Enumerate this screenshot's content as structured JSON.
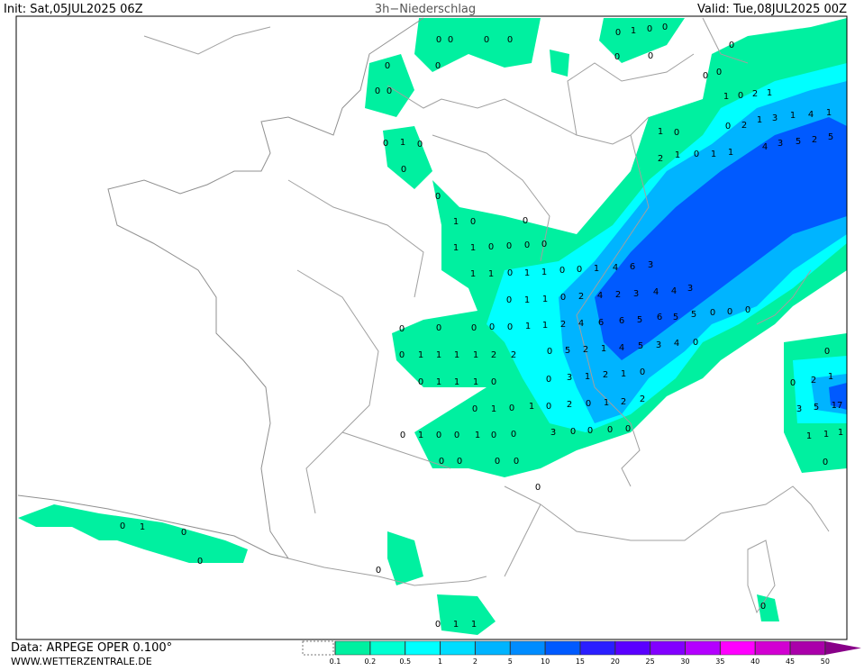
{
  "header": {
    "init": "Init: Sat,05JUL2025 06Z",
    "title": "3h−Niederschlag",
    "valid": "Valid: Tue,08JUL2025 00Z"
  },
  "footer": {
    "data": "Data: ARPEGE OPER 0.100°",
    "site": "WWW.WETTERZENTRALE.DE"
  },
  "legend": {
    "levels": [
      0.1,
      0.2,
      0.5,
      1,
      2,
      5,
      10,
      15,
      20,
      25,
      30,
      35,
      40,
      45,
      50
    ],
    "colors": [
      "#00f0a0",
      "#00ffd2",
      "#00ffff",
      "#00ddff",
      "#00b4ff",
      "#008cff",
      "#005aff",
      "#2a1eff",
      "#5a00ff",
      "#8200ff",
      "#b400ff",
      "#ff00ff",
      "#d200d2",
      "#aa00aa",
      "#880088"
    ]
  },
  "map": {
    "labels": [
      0,
      0,
      0,
      0,
      0,
      0,
      1,
      0,
      0,
      0,
      0,
      0,
      0,
      0,
      0,
      0,
      0,
      1,
      0,
      2,
      1,
      0,
      2,
      1,
      3,
      1,
      4,
      1,
      1,
      0,
      2,
      1,
      0,
      1,
      1,
      4,
      3,
      5,
      2,
      5,
      0,
      1,
      0,
      0,
      0,
      1,
      0,
      0,
      1,
      1,
      0,
      0,
      0,
      0,
      1,
      1,
      0,
      1,
      1,
      0,
      0,
      1,
      4,
      6,
      3,
      0,
      1,
      1,
      0,
      2,
      4,
      2,
      3,
      4,
      4,
      3,
      0,
      0,
      0,
      0,
      0,
      1,
      1,
      2,
      4,
      6,
      6,
      5,
      6,
      5,
      5,
      0,
      0,
      0,
      0,
      1,
      1,
      1,
      1,
      2,
      2,
      0,
      5,
      2,
      1,
      4,
      5,
      3,
      4,
      0,
      0,
      1,
      1,
      1,
      0,
      0,
      3,
      1,
      2,
      1,
      0,
      0,
      1,
      0,
      1,
      0,
      2,
      0,
      1,
      2,
      2,
      0,
      1,
      0,
      0,
      1,
      0,
      0,
      3,
      0,
      0,
      0,
      0,
      0,
      0,
      0,
      0,
      0,
      0,
      1,
      0,
      0,
      0,
      0,
      1,
      1,
      0,
      0,
      0,
      2,
      1,
      3,
      5,
      17,
      1,
      1,
      1,
      0
    ]
  }
}
